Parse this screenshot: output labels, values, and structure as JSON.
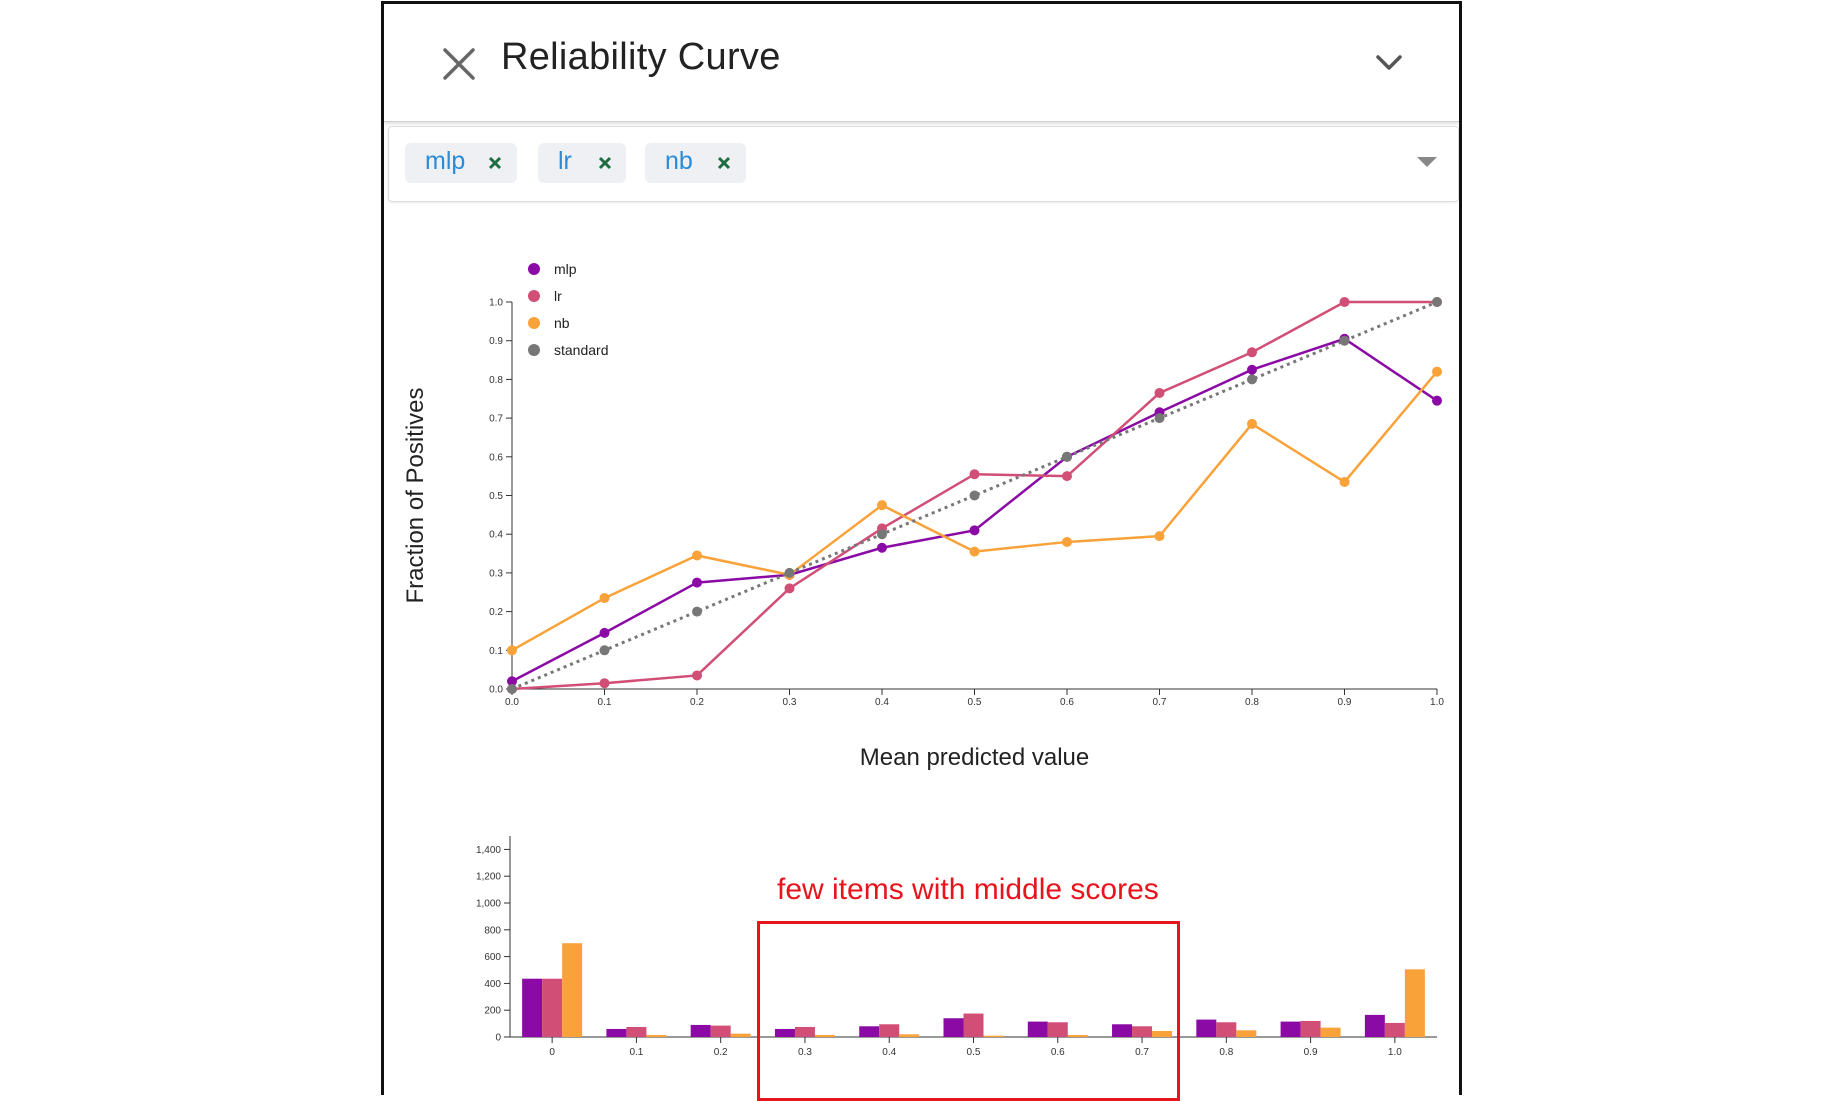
{
  "header": {
    "title": "Reliability Curve",
    "close_icon": "close-icon",
    "collapse_icon": "chevron-down-icon"
  },
  "filter": {
    "chips": [
      {
        "label": "mlp",
        "remove_icon": "close-icon",
        "color": "#2a8bd8"
      },
      {
        "label": "lr",
        "remove_icon": "close-icon",
        "color": "#2a8bd8"
      },
      {
        "label": "nb",
        "remove_icon": "close-icon",
        "color": "#2a8bd8"
      }
    ],
    "dropdown_icon": "caret-down-icon"
  },
  "chart_data": [
    {
      "type": "line",
      "xlabel": "Mean predicted value",
      "ylabel": "Fraction of Positives",
      "xlim": [
        0.0,
        1.0
      ],
      "ylim": [
        0.0,
        1.0
      ],
      "x_ticks": [
        "0.0",
        "0.1",
        "0.2",
        "0.3",
        "0.4",
        "0.5",
        "0.6",
        "0.7",
        "0.8",
        "0.9",
        "1.0"
      ],
      "y_ticks": [
        "0.0",
        "0.1",
        "0.2",
        "0.3",
        "0.4",
        "0.5",
        "0.6",
        "0.7",
        "0.8",
        "0.9",
        "1.0"
      ],
      "legend": {
        "placement": "top-left",
        "entries": [
          "mlp",
          "lr",
          "nb",
          "standard"
        ]
      },
      "grid": false,
      "series": [
        {
          "name": "mlp",
          "color": "#8b0aa5",
          "dash": false,
          "x": [
            0.0,
            0.1,
            0.2,
            0.3,
            0.4,
            0.5,
            0.6,
            0.7,
            0.8,
            0.9,
            1.0
          ],
          "y": [
            0.02,
            0.145,
            0.275,
            0.295,
            0.365,
            0.41,
            0.6,
            0.715,
            0.825,
            0.905,
            0.745
          ]
        },
        {
          "name": "lr",
          "color": "#d14e76",
          "dash": false,
          "x": [
            0.0,
            0.1,
            0.2,
            0.3,
            0.4,
            0.5,
            0.6,
            0.7,
            0.8,
            0.9,
            1.0
          ],
          "y": [
            0.0,
            0.015,
            0.035,
            0.26,
            0.415,
            0.555,
            0.55,
            0.765,
            0.87,
            1.0,
            1.0
          ]
        },
        {
          "name": "nb",
          "color": "#f9a23a",
          "dash": false,
          "x": [
            0.0,
            0.1,
            0.2,
            0.3,
            0.4,
            0.5,
            0.6,
            0.7,
            0.8,
            0.9,
            1.0
          ],
          "y": [
            0.1,
            0.235,
            0.345,
            0.295,
            0.475,
            0.355,
            0.38,
            0.395,
            0.685,
            0.535,
            0.82
          ]
        },
        {
          "name": "standard",
          "color": "#777777",
          "dash": true,
          "x": [
            0.0,
            0.1,
            0.2,
            0.3,
            0.4,
            0.5,
            0.6,
            0.7,
            0.8,
            0.9,
            1.0
          ],
          "y": [
            0.0,
            0.1,
            0.2,
            0.3,
            0.4,
            0.5,
            0.6,
            0.7,
            0.8,
            0.9,
            1.0
          ]
        }
      ]
    },
    {
      "type": "bar",
      "categories": [
        "0",
        "0.1",
        "0.2",
        "0.3",
        "0.4",
        "0.5",
        "0.6",
        "0.7",
        "0.8",
        "0.9",
        "1.0"
      ],
      "ylim": [
        0,
        1500
      ],
      "y_ticks": [
        "0",
        "200",
        "400",
        "600",
        "800",
        "1,000",
        "1,200",
        "1,400"
      ],
      "y_tick_values": [
        0,
        200,
        400,
        600,
        800,
        1000,
        1200,
        1400
      ],
      "series": [
        {
          "name": "mlp",
          "color": "#8b0aa5",
          "values": [
            435,
            60,
            90,
            60,
            80,
            140,
            115,
            95,
            130,
            115,
            165
          ]
        },
        {
          "name": "lr",
          "color": "#d14e76",
          "values": [
            435,
            75,
            85,
            75,
            95,
            175,
            110,
            80,
            110,
            120,
            105
          ]
        },
        {
          "name": "nb",
          "color": "#f9a23a",
          "values": [
            700,
            15,
            25,
            15,
            20,
            10,
            15,
            45,
            50,
            70,
            505
          ]
        }
      ]
    }
  ],
  "annotation": {
    "text": "few items with middle scores",
    "color": "#e8141c"
  }
}
